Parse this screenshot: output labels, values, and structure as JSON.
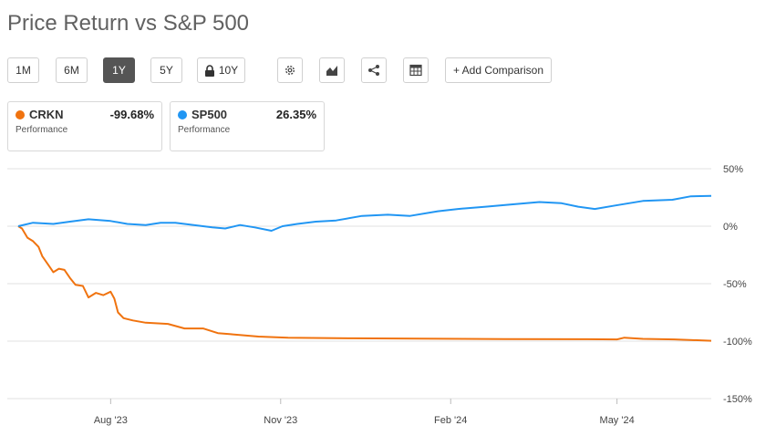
{
  "title": "Price Return vs S&P 500",
  "toolbar": {
    "ranges": [
      "1M",
      "6M",
      "1Y",
      "5Y",
      "10Y"
    ],
    "active_range": "1Y",
    "add_comparison": "+ Add Comparison",
    "icons": [
      "gear-icon",
      "chart-type-icon",
      "share-icon",
      "table-icon"
    ]
  },
  "cards": [
    {
      "symbol": "CRKN",
      "value": "-99.68%",
      "sub": "Performance",
      "color": "#f0730f"
    },
    {
      "symbol": "SP500",
      "value": "26.35%",
      "sub": "Performance",
      "color": "#2196f3"
    }
  ],
  "chart_data": {
    "type": "line",
    "x_tick_labels": [
      "Aug '23",
      "Nov '23",
      "Feb '24",
      "May '24"
    ],
    "y_tick_labels": [
      "50%",
      "0%",
      "-50%",
      "-100%",
      "-150%"
    ],
    "y_ticks": [
      50,
      0,
      -50,
      -100,
      -150
    ],
    "ylim": [
      -150,
      50
    ],
    "xlim": [
      "2023-06-12",
      "2024-06-21"
    ],
    "x_ticks": [
      "2023-08-01",
      "2023-11-01",
      "2024-02-01",
      "2024-05-01"
    ],
    "grid": true,
    "series": [
      {
        "name": "CRKN",
        "color": "#f0730f",
        "points": [
          [
            "2023-06-12",
            0
          ],
          [
            "2023-06-14",
            -2
          ],
          [
            "2023-06-17",
            -10
          ],
          [
            "2023-06-20",
            -13
          ],
          [
            "2023-06-23",
            -18
          ],
          [
            "2023-06-25",
            -26
          ],
          [
            "2023-06-28",
            -33
          ],
          [
            "2023-07-01",
            -40
          ],
          [
            "2023-07-04",
            -37
          ],
          [
            "2023-07-07",
            -38
          ],
          [
            "2023-07-10",
            -45
          ],
          [
            "2023-07-13",
            -51
          ],
          [
            "2023-07-17",
            -52
          ],
          [
            "2023-07-20",
            -62
          ],
          [
            "2023-07-24",
            -58
          ],
          [
            "2023-07-28",
            -60
          ],
          [
            "2023-08-01",
            -57
          ],
          [
            "2023-08-03",
            -63
          ],
          [
            "2023-08-05",
            -75
          ],
          [
            "2023-08-08",
            -80
          ],
          [
            "2023-08-13",
            -82
          ],
          [
            "2023-08-20",
            -84
          ],
          [
            "2023-09-01",
            -85
          ],
          [
            "2023-09-10",
            -89
          ],
          [
            "2023-09-20",
            -89
          ],
          [
            "2023-09-28",
            -93
          ],
          [
            "2023-10-05",
            -94
          ],
          [
            "2023-10-20",
            -96
          ],
          [
            "2023-11-05",
            -97
          ],
          [
            "2023-12-10",
            -97.5
          ],
          [
            "2024-01-15",
            -97.8
          ],
          [
            "2024-03-01",
            -98.2
          ],
          [
            "2024-04-15",
            -98.3
          ],
          [
            "2024-05-01",
            -98.5
          ],
          [
            "2024-05-05",
            -97
          ],
          [
            "2024-05-15",
            -98
          ],
          [
            "2024-06-01",
            -98.5
          ],
          [
            "2024-06-21",
            -99.7
          ]
        ]
      },
      {
        "name": "SP500",
        "color": "#2196f3",
        "points": [
          [
            "2023-06-12",
            0
          ],
          [
            "2023-06-20",
            3
          ],
          [
            "2023-07-01",
            2
          ],
          [
            "2023-07-10",
            4
          ],
          [
            "2023-07-20",
            6
          ],
          [
            "2023-08-01",
            4.5
          ],
          [
            "2023-08-10",
            2
          ],
          [
            "2023-08-20",
            1
          ],
          [
            "2023-08-28",
            3
          ],
          [
            "2023-09-05",
            3
          ],
          [
            "2023-09-15",
            1
          ],
          [
            "2023-09-25",
            -1
          ],
          [
            "2023-10-02",
            -2
          ],
          [
            "2023-10-10",
            1
          ],
          [
            "2023-10-18",
            -1
          ],
          [
            "2023-10-27",
            -4
          ],
          [
            "2023-11-02",
            0
          ],
          [
            "2023-11-10",
            2
          ],
          [
            "2023-11-20",
            4
          ],
          [
            "2023-12-01",
            5
          ],
          [
            "2023-12-15",
            9
          ],
          [
            "2023-12-29",
            10
          ],
          [
            "2024-01-10",
            9
          ],
          [
            "2024-01-25",
            13
          ],
          [
            "2024-02-05",
            15
          ],
          [
            "2024-02-20",
            17
          ],
          [
            "2024-03-05",
            19
          ],
          [
            "2024-03-20",
            21
          ],
          [
            "2024-04-01",
            20
          ],
          [
            "2024-04-10",
            17
          ],
          [
            "2024-04-19",
            15
          ],
          [
            "2024-04-30",
            18
          ],
          [
            "2024-05-15",
            22
          ],
          [
            "2024-05-31",
            23
          ],
          [
            "2024-06-10",
            26
          ],
          [
            "2024-06-21",
            26.35
          ]
        ]
      }
    ]
  }
}
